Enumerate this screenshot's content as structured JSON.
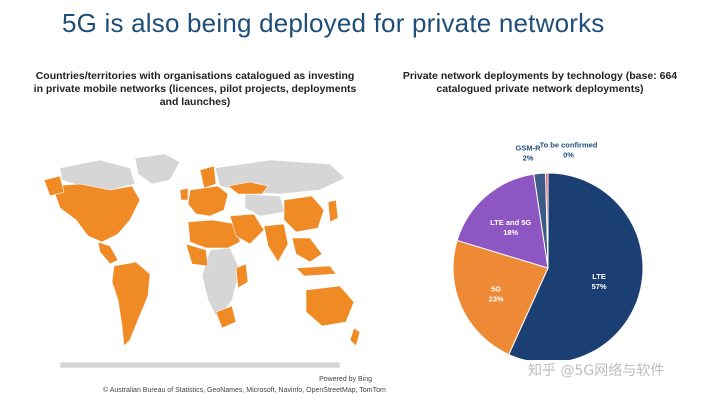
{
  "slide": {
    "title": "5G is also being deployed for private networks"
  },
  "map": {
    "caption": "Countries/territories with organisations catalogued as investing in private mobile networks (licences, pilot projects, deployments and launches)",
    "credit_powered": "Powered by Bing",
    "credit_sources": "© Australian Bureau of Statistics, GeoNames, Microsoft, Navinfo, OpenStreetMap, TomTom",
    "colors": {
      "investing": "#f08a24",
      "other": "#d6d6d6"
    }
  },
  "watermark": "知乎 @5G网络与软件",
  "chart_data": {
    "type": "pie",
    "title": "Private network deployments by technology (base: 664 catalogued private network deployments)",
    "slices": [
      {
        "name": "LTE",
        "value": 57,
        "label": "57%",
        "color": "#1b3f73",
        "label_color": "#ffffff"
      },
      {
        "name": "5G",
        "value": 23,
        "label": "23%",
        "color": "#ee8a35",
        "label_color": "#ffffff"
      },
      {
        "name": "LTE and 5G",
        "value": 18,
        "label": "18%",
        "color": "#8e56c2",
        "label_color": "#ffffff"
      },
      {
        "name": "GSM-R",
        "value": 2,
        "label": "2%",
        "color": "#3d5b86",
        "label_color": "#1f4e79"
      },
      {
        "name": "To be confirmed",
        "value": 0.4,
        "label": "0%",
        "color": "#e23a4a",
        "label_color": "#1f4e79"
      }
    ]
  }
}
